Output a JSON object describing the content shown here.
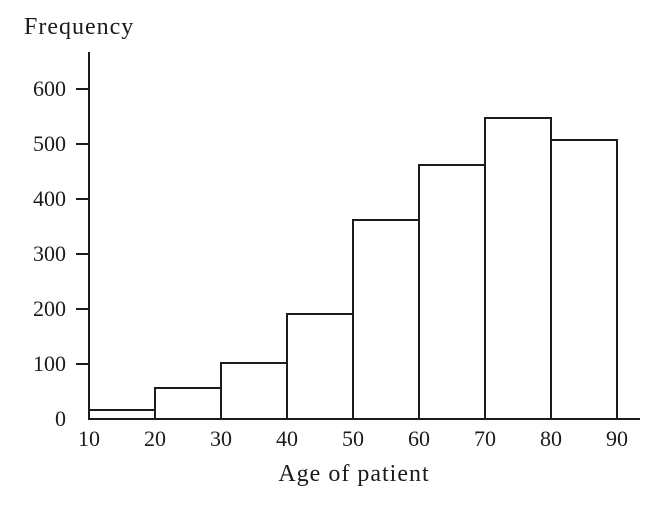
{
  "figure": {
    "background": "#ffffff"
  },
  "chart_data": {
    "type": "bar",
    "subtype": "histogram",
    "title": "",
    "ylabel": "Frequency",
    "xlabel": "Age of patient",
    "bin_edges": [
      10,
      20,
      30,
      40,
      50,
      60,
      70,
      80,
      90
    ],
    "categories": [
      "10-20",
      "20-30",
      "30-40",
      "40-50",
      "50-60",
      "60-70",
      "70-80",
      "80-90"
    ],
    "values": [
      20,
      60,
      105,
      195,
      365,
      465,
      550,
      510
    ],
    "x_ticks": [
      10,
      20,
      30,
      40,
      50,
      60,
      70,
      80,
      90
    ],
    "y_ticks": [
      0,
      100,
      200,
      300,
      400,
      500,
      600
    ],
    "ylim": [
      0,
      665
    ],
    "xlabel_position": "bottom-center",
    "ylabel_position": "top-left",
    "grid": false,
    "legend": "none",
    "bar_fill": "#ffffff",
    "line_color": "#1c1c1c",
    "text_color": "#1b1b1b"
  }
}
